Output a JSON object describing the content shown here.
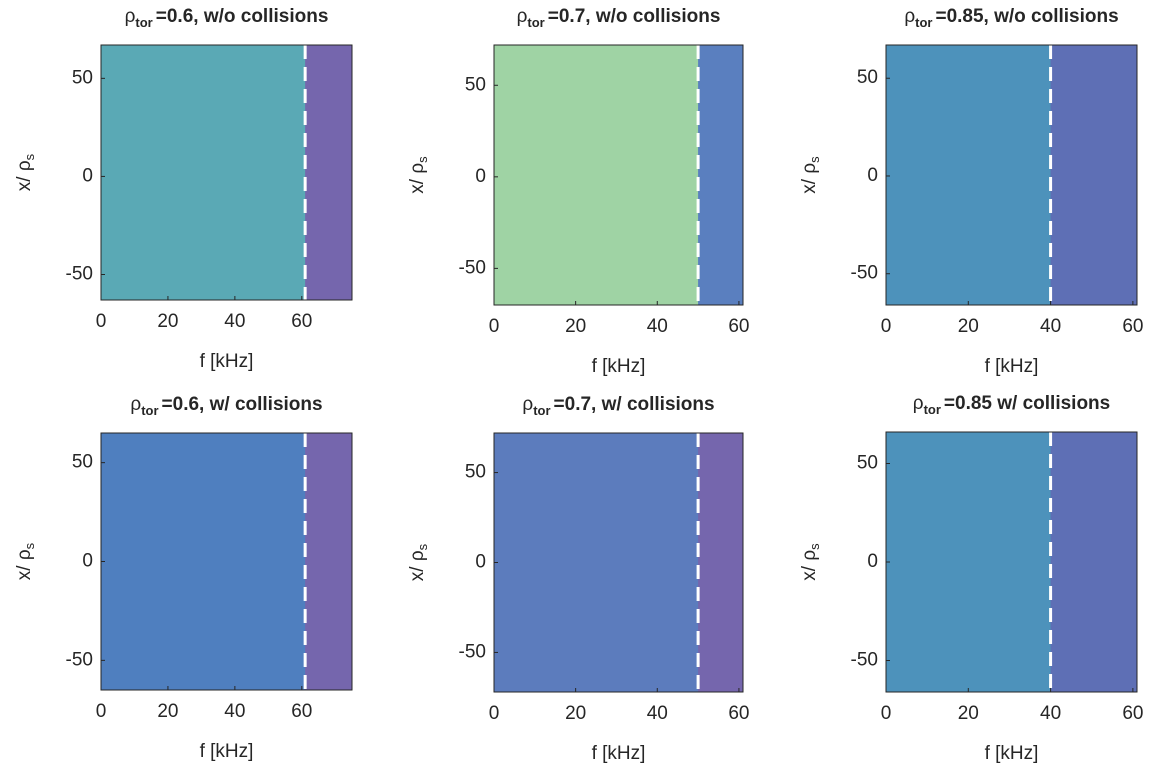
{
  "chart_data": [
    {
      "type": "contour",
      "title": {
        "symbol": "ρ",
        "subscript": "tor",
        "text": "=0.6, w/o collisions"
      },
      "xlabel": "f [kHz]",
      "ylabel": {
        "text": "x/ ρ",
        "subscript": "s"
      },
      "xlim": [
        0,
        75
      ],
      "ylim": [
        -63,
        67
      ],
      "xticks": [
        0,
        20,
        40,
        60
      ],
      "yticks": [
        -50,
        0,
        50
      ],
      "cutoff": 61,
      "color": "#5aa9b5",
      "cutoff_color": "#7566ad"
    },
    {
      "type": "contour",
      "title": {
        "symbol": "ρ",
        "subscript": "tor",
        "text": "=0.7, w/o collisions"
      },
      "xlabel": "f [kHz]",
      "ylabel": {
        "text": "x/ ρ",
        "subscript": "s"
      },
      "xlim": [
        0,
        61
      ],
      "ylim": [
        -70,
        72
      ],
      "xticks": [
        0,
        20,
        40,
        60
      ],
      "yticks": [
        -50,
        0,
        50
      ],
      "cutoff": 50,
      "color": "#9fd3a4",
      "cutoff_color": "#5a7fbf"
    },
    {
      "type": "contour",
      "title": {
        "symbol": "ρ",
        "subscript": "tor",
        "text": "=0.85, w/o collisions"
      },
      "xlabel": "f [kHz]",
      "ylabel": {
        "text": "x/ ρ",
        "subscript": "s"
      },
      "xlim": [
        0,
        61
      ],
      "ylim": [
        -66,
        67
      ],
      "xticks": [
        0,
        20,
        40,
        60
      ],
      "yticks": [
        -50,
        0,
        50
      ],
      "cutoff": 40,
      "color": "#4d92bb",
      "cutoff_color": "#5e6fb5"
    },
    {
      "type": "contour",
      "title": {
        "symbol": "ρ",
        "subscript": "tor",
        "text": "=0.6, w/ collisions"
      },
      "xlabel": "f [kHz]",
      "ylabel": {
        "text": "x/ ρ",
        "subscript": "s"
      },
      "xlim": [
        0,
        75
      ],
      "ylim": [
        -65,
        65
      ],
      "xticks": [
        0,
        20,
        40,
        60
      ],
      "yticks": [
        -50,
        0,
        50
      ],
      "cutoff": 61,
      "color": "#4f7fbf",
      "cutoff_color": "#7566ad"
    },
    {
      "type": "contour",
      "title": {
        "symbol": "ρ",
        "subscript": "tor",
        "text": "=0.7, w/ collisions"
      },
      "xlabel": "f [kHz]",
      "ylabel": {
        "text": "x/ ρ",
        "subscript": "s"
      },
      "xlim": [
        0,
        61
      ],
      "ylim": [
        -72,
        72
      ],
      "xticks": [
        0,
        20,
        40,
        60
      ],
      "yticks": [
        -50,
        0,
        50
      ],
      "cutoff": 50,
      "color": "#5c7cbd",
      "cutoff_color": "#7566ad"
    },
    {
      "type": "contour",
      "title": {
        "symbol": "ρ",
        "subscript": "tor",
        "text": "=0.85 w/ collisions"
      },
      "xlabel": "f [kHz]",
      "ylabel": {
        "text": "x/ ρ",
        "subscript": "s"
      },
      "xlim": [
        0,
        61
      ],
      "ylim": [
        -66,
        66
      ],
      "xticks": [
        0,
        20,
        40,
        60
      ],
      "yticks": [
        -50,
        0,
        50
      ],
      "cutoff": 40,
      "color": "#4d92bb",
      "cutoff_color": "#5e6fb5"
    }
  ]
}
